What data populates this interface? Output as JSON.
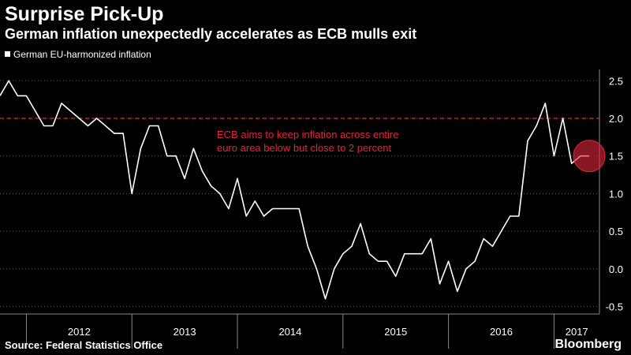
{
  "title": "Surprise Pick-Up",
  "subtitle": "German inflation unexpectedly accelerates as ECB mulls exit",
  "legend_label": "German EU-harmonized inflation",
  "annotation": {
    "line1": "ECB aims to keep inflation across entire",
    "line2": "euro area below but close to 2 percent"
  },
  "source": "Source: Federal Statistics Office",
  "brand": "Bloomberg",
  "colors": {
    "background": "#000000",
    "line": "#ffffff",
    "reference": "#e0263a",
    "grid": "#555555"
  },
  "chart_data": {
    "type": "line",
    "title": "Surprise Pick-Up",
    "subtitle": "German inflation unexpectedly accelerates as ECB mulls exit",
    "xlabel": "",
    "ylabel": "",
    "x_start": "2011-10",
    "x_end": "2017-05",
    "x_tick_labels": [
      "2012",
      "2013",
      "2014",
      "2015",
      "2016",
      "2017"
    ],
    "ylim": [
      -0.6,
      2.65
    ],
    "y_ticks": [
      -0.5,
      0.0,
      0.5,
      1.0,
      1.5,
      2.0,
      2.5
    ],
    "y_tick_labels": [
      "-0.5",
      "0.0",
      "0.5",
      "1.0",
      "1.5",
      "2.0",
      "2.5"
    ],
    "grid": "horizontal dotted",
    "legend_position": "top-left",
    "reference_line": {
      "y": 2.0,
      "style": "dashed",
      "color": "#e0263a"
    },
    "highlight": {
      "x": "2017-05",
      "y": 1.5,
      "color": "#e0263a"
    },
    "series": [
      {
        "name": "German EU-harmonized inflation",
        "x": [
          "2011-10",
          "2011-11",
          "2011-12",
          "2012-01",
          "2012-02",
          "2012-03",
          "2012-04",
          "2012-05",
          "2012-06",
          "2012-07",
          "2012-08",
          "2012-09",
          "2012-10",
          "2012-11",
          "2012-12",
          "2013-01",
          "2013-02",
          "2013-03",
          "2013-04",
          "2013-05",
          "2013-06",
          "2013-07",
          "2013-08",
          "2013-09",
          "2013-10",
          "2013-11",
          "2013-12",
          "2014-01",
          "2014-02",
          "2014-03",
          "2014-04",
          "2014-05",
          "2014-06",
          "2014-07",
          "2014-08",
          "2014-09",
          "2014-10",
          "2014-11",
          "2014-12",
          "2015-01",
          "2015-02",
          "2015-03",
          "2015-04",
          "2015-05",
          "2015-06",
          "2015-07",
          "2015-08",
          "2015-09",
          "2015-10",
          "2015-11",
          "2015-12",
          "2016-01",
          "2016-02",
          "2016-03",
          "2016-04",
          "2016-05",
          "2016-06",
          "2016-07",
          "2016-08",
          "2016-09",
          "2016-10",
          "2016-11",
          "2016-12",
          "2017-01",
          "2017-02",
          "2017-03",
          "2017-04",
          "2017-05"
        ],
        "values": [
          2.3,
          2.5,
          2.3,
          2.3,
          2.1,
          1.9,
          1.9,
          2.2,
          2.1,
          2.0,
          1.9,
          2.0,
          1.9,
          1.8,
          1.8,
          1.0,
          1.6,
          1.9,
          1.9,
          1.5,
          1.5,
          1.2,
          1.6,
          1.3,
          1.1,
          1.0,
          0.8,
          1.2,
          0.7,
          0.9,
          0.7,
          0.8,
          0.8,
          0.8,
          0.8,
          0.3,
          0.0,
          -0.4,
          0.0,
          0.2,
          0.3,
          0.6,
          0.2,
          0.1,
          0.1,
          -0.1,
          0.2,
          0.2,
          0.2,
          0.4,
          -0.2,
          0.1,
          -0.3,
          0.0,
          0.1,
          0.4,
          0.3,
          0.5,
          0.7,
          0.7,
          1.7,
          1.9,
          2.2,
          1.5,
          2.0,
          1.4,
          1.5,
          1.5
        ]
      }
    ]
  }
}
